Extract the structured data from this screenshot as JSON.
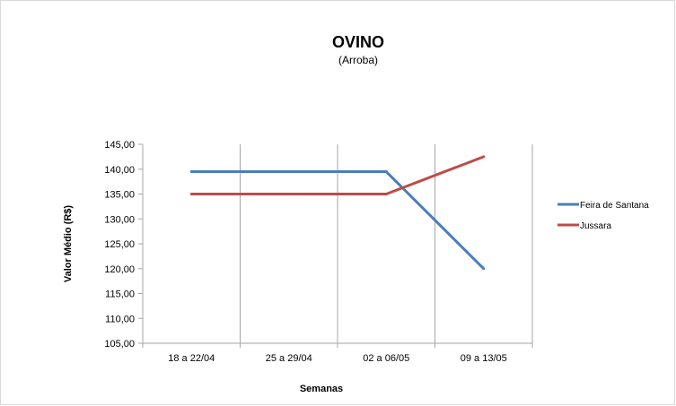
{
  "chart_data": {
    "type": "line",
    "title": "OVINO",
    "subtitle": "(Arroba)",
    "xlabel": "Semanas",
    "ylabel": "Valor Médio (R$)",
    "categories": [
      "18 a 22/04",
      "25 a 29/04",
      "02 a 06/05",
      "09 a 13/05"
    ],
    "ylim": [
      105,
      145
    ],
    "yticks": [
      "105,00",
      "110,00",
      "115,00",
      "120,00",
      "125,00",
      "130,00",
      "135,00",
      "140,00",
      "145,00"
    ],
    "grid": "vertical",
    "legend": "right",
    "series": [
      {
        "name": "Feira de Santana",
        "color": "#4a7ebb",
        "values": [
          139.5,
          139.5,
          139.5,
          120.0
        ]
      },
      {
        "name": "Jussara",
        "color": "#be4b48",
        "values": [
          135.0,
          135.0,
          135.0,
          142.5
        ]
      }
    ]
  }
}
